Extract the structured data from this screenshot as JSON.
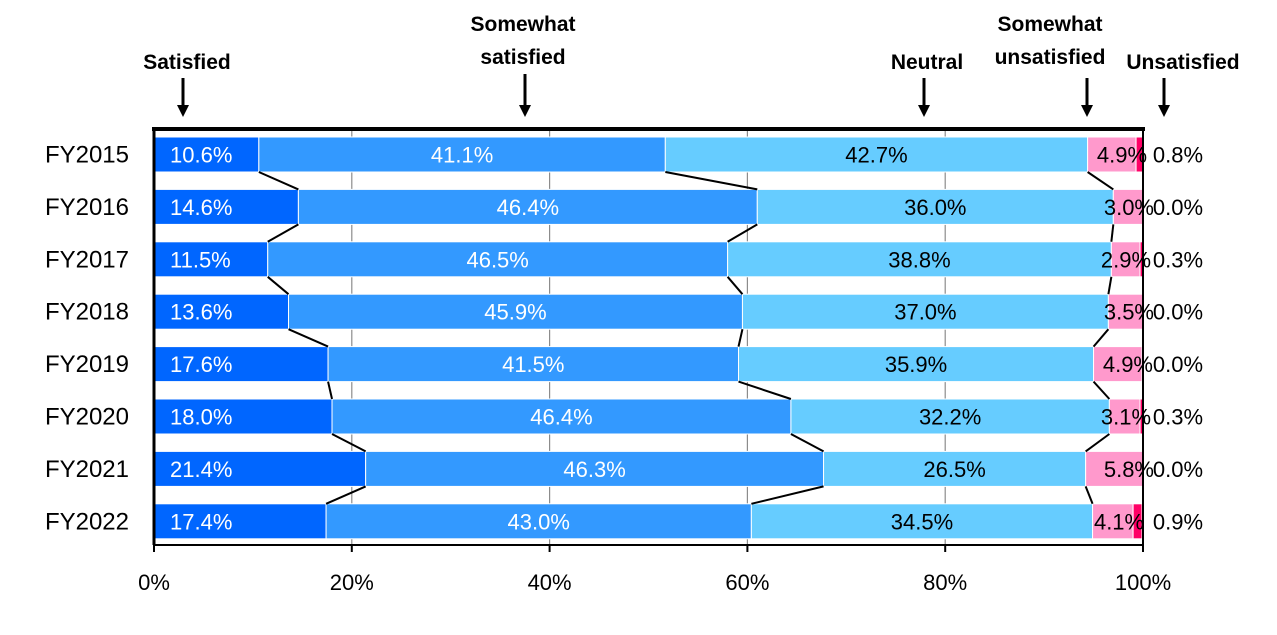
{
  "chart_data": {
    "type": "bar",
    "orientation": "horizontal",
    "stacked": true,
    "normalized": true,
    "categories": [
      "FY2015",
      "FY2016",
      "FY2017",
      "FY2018",
      "FY2019",
      "FY2020",
      "FY2021",
      "FY2022"
    ],
    "series": [
      {
        "name": "Satisfied",
        "color": "#0066ff",
        "label_color": "#ffffff",
        "values": [
          10.6,
          14.6,
          11.5,
          13.6,
          17.6,
          18.0,
          21.4,
          17.4
        ],
        "labels": [
          "10.6%",
          "14.6%",
          "11.5%",
          "13.6%",
          "17.6%",
          "18.0%",
          "21.4%",
          "17.4%"
        ]
      },
      {
        "name": "Somewhat satisfied",
        "color": "#3399ff",
        "label_color": "#ffffff",
        "values": [
          41.1,
          46.4,
          46.5,
          45.9,
          41.5,
          46.4,
          46.3,
          43.0
        ],
        "labels": [
          "41.1%",
          "46.4%",
          "46.5%",
          "45.9%",
          "41.5%",
          "46.4%",
          "46.3%",
          "43.0%"
        ]
      },
      {
        "name": "Neutral",
        "color": "#66ccff",
        "label_color": "#000000",
        "values": [
          42.7,
          36.0,
          38.8,
          37.0,
          35.9,
          32.2,
          26.5,
          34.5
        ],
        "labels": [
          "42.7%",
          "36.0%",
          "38.8%",
          "37.0%",
          "35.9%",
          "32.2%",
          "26.5%",
          "34.5%"
        ]
      },
      {
        "name": "Somewhat unsatisfied",
        "color": "#ff99cc",
        "label_color": "#000000",
        "values": [
          4.9,
          3.0,
          2.9,
          3.5,
          4.9,
          3.1,
          5.8,
          4.1
        ],
        "labels": [
          "4.9%",
          "3.0%",
          "2.9%",
          "3.5%",
          "4.9%",
          "3.1%",
          "5.8%",
          "4.1%"
        ]
      },
      {
        "name": "Unsatisfied",
        "color": "#ff0066",
        "label_color": "#000000",
        "values": [
          0.8,
          0.0,
          0.3,
          0.0,
          0.0,
          0.3,
          0.0,
          0.9
        ],
        "labels": [
          "0.8%",
          "0.0%",
          "0.3%",
          "0.0%",
          "0.0%",
          "0.3%",
          "0.0%",
          "0.9%"
        ]
      }
    ],
    "legend": [
      {
        "lines": [
          "Satisfied"
        ]
      },
      {
        "lines": [
          "Somewhat",
          "satisfied"
        ]
      },
      {
        "lines": [
          "Neutral"
        ]
      },
      {
        "lines": [
          "Somewhat",
          "unsatisfied"
        ]
      },
      {
        "lines": [
          "Unsatisfied"
        ]
      }
    ],
    "legend_placement": "top, with arrows pointing down to segments",
    "x_ticks": [
      "0%",
      "20%",
      "40%",
      "60%",
      "80%",
      "100%"
    ],
    "xlim": [
      0,
      100
    ],
    "grid": "vertical",
    "connector_lines": true,
    "title": "",
    "xlabel": "",
    "ylabel": ""
  }
}
